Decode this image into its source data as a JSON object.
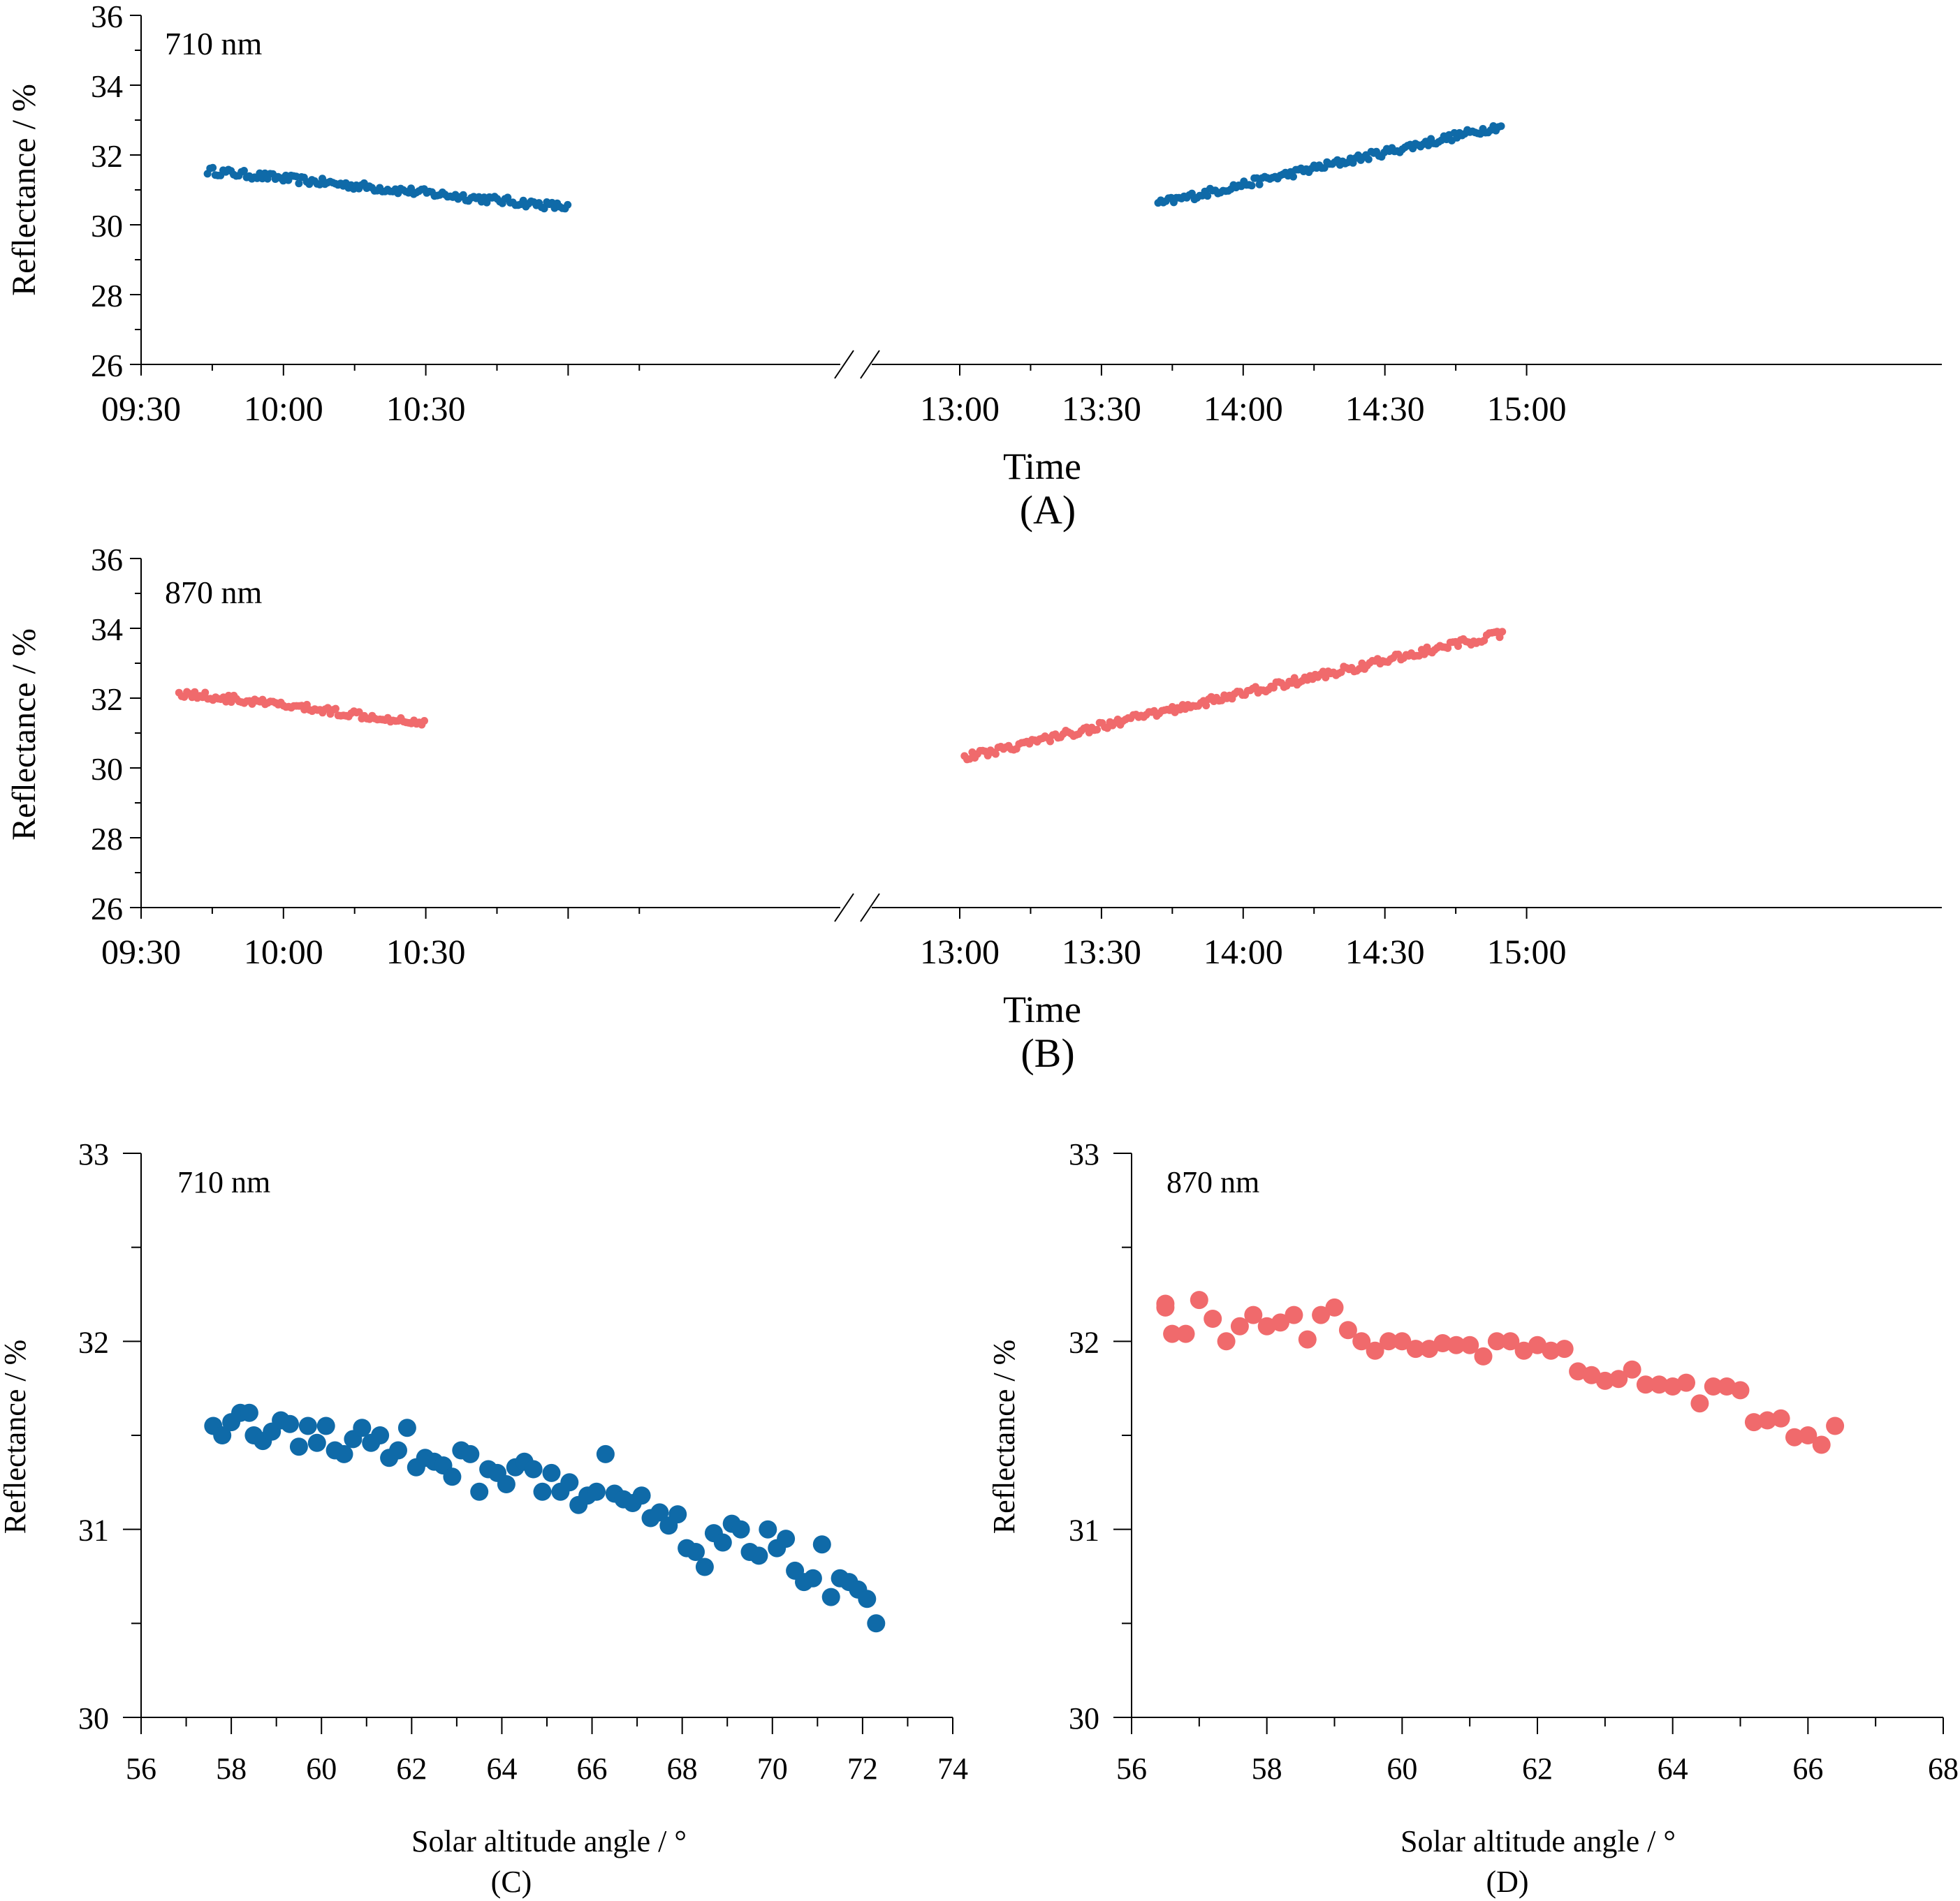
{
  "colors": {
    "blue": "#0f6aa8",
    "red": "#f06a6c",
    "axis": "#000000"
  },
  "chart_data": [
    {
      "id": "A",
      "type": "scatter",
      "panel_label": "(A)",
      "annotation": "710 nm",
      "xlabel": "Time",
      "ylabel": "Reflectance / %",
      "ylim": [
        26,
        36
      ],
      "yticks": [
        "26",
        "28",
        "30",
        "32",
        "34",
        "36"
      ],
      "xticks_left": [
        "09:30",
        "10:00",
        "10:30"
      ],
      "xticks_right": [
        "13:00",
        "13:30",
        "14:00",
        "14:30",
        "15:00"
      ],
      "x_break": true,
      "x_units": "minutes since 00:00",
      "series": [
        {
          "name": "710 nm",
          "color": "#0f6aa8",
          "segments": [
            {
              "start": 584,
              "end": 660,
              "y0": 31.55,
              "y1": 30.5
            },
            {
              "start": 822,
              "end": 895,
              "y0": 30.6,
              "y1": 32.85
            }
          ]
        }
      ]
    },
    {
      "id": "B",
      "type": "scatter",
      "panel_label": "(B)",
      "annotation": "870 nm",
      "xlabel": "Time",
      "ylabel": "Reflectance / %",
      "ylim": [
        26,
        36
      ],
      "yticks": [
        "26",
        "28",
        "30",
        "32",
        "34",
        "36"
      ],
      "xticks_left": [
        "09:30",
        "10:00",
        "10:30"
      ],
      "xticks_right": [
        "13:00",
        "13:30",
        "14:00",
        "14:30",
        "15:00"
      ],
      "x_break": true,
      "x_units": "minutes since 00:00",
      "series": [
        {
          "name": "870 nm",
          "color": "#f06a6c",
          "segments": [
            {
              "start": 578,
              "end": 630,
              "y0": 32.15,
              "y1": 31.3
            },
            {
              "start": 781,
              "end": 895,
              "y0": 30.3,
              "y1": 33.85
            }
          ]
        }
      ]
    },
    {
      "id": "C",
      "type": "scatter",
      "panel_label": "(C)",
      "annotation": "710 nm",
      "xlabel": "Solar altitude angle / °",
      "ylabel": "Reflectance / %",
      "xlim": [
        56,
        74
      ],
      "ylim": [
        30,
        33
      ],
      "xticks": [
        "56",
        "58",
        "60",
        "62",
        "64",
        "66",
        "68",
        "70",
        "72",
        "74"
      ],
      "yticks": [
        "30",
        "31",
        "32",
        "33"
      ],
      "series": [
        {
          "name": "710 nm",
          "color": "#0f6aa8",
          "points": [
            [
              57.6,
              31.55
            ],
            [
              57.8,
              31.5
            ],
            [
              58.0,
              31.57
            ],
            [
              58.2,
              31.62
            ],
            [
              58.4,
              31.62
            ],
            [
              58.5,
              31.5
            ],
            [
              58.7,
              31.47
            ],
            [
              58.9,
              31.52
            ],
            [
              59.1,
              31.58
            ],
            [
              59.3,
              31.56
            ],
            [
              59.5,
              31.44
            ],
            [
              59.7,
              31.55
            ],
            [
              59.9,
              31.46
            ],
            [
              60.1,
              31.55
            ],
            [
              60.3,
              31.42
            ],
            [
              60.5,
              31.4
            ],
            [
              60.7,
              31.48
            ],
            [
              60.9,
              31.54
            ],
            [
              61.1,
              31.46
            ],
            [
              61.3,
              31.5
            ],
            [
              61.5,
              31.38
            ],
            [
              61.7,
              31.42
            ],
            [
              61.9,
              31.54
            ],
            [
              62.1,
              31.33
            ],
            [
              62.3,
              31.38
            ],
            [
              62.5,
              31.36
            ],
            [
              62.7,
              31.34
            ],
            [
              62.9,
              31.28
            ],
            [
              63.1,
              31.42
            ],
            [
              63.3,
              31.4
            ],
            [
              63.5,
              31.2
            ],
            [
              63.7,
              31.32
            ],
            [
              63.9,
              31.3
            ],
            [
              64.1,
              31.24
            ],
            [
              64.3,
              31.33
            ],
            [
              64.5,
              31.36
            ],
            [
              64.7,
              31.32
            ],
            [
              64.9,
              31.2
            ],
            [
              65.1,
              31.3
            ],
            [
              65.3,
              31.2
            ],
            [
              65.5,
              31.25
            ],
            [
              65.7,
              31.13
            ],
            [
              65.9,
              31.18
            ],
            [
              66.1,
              31.2
            ],
            [
              66.3,
              31.4
            ],
            [
              66.5,
              31.19
            ],
            [
              66.7,
              31.16
            ],
            [
              66.9,
              31.14
            ],
            [
              67.1,
              31.18
            ],
            [
              67.3,
              31.06
            ],
            [
              67.5,
              31.09
            ],
            [
              67.7,
              31.02
            ],
            [
              67.9,
              31.08
            ],
            [
              68.1,
              30.9
            ],
            [
              68.3,
              30.88
            ],
            [
              68.5,
              30.8
            ],
            [
              68.7,
              30.98
            ],
            [
              68.9,
              30.93
            ],
            [
              69.1,
              31.03
            ],
            [
              69.3,
              31.0
            ],
            [
              69.5,
              30.88
            ],
            [
              69.7,
              30.86
            ],
            [
              69.9,
              31.0
            ],
            [
              70.1,
              30.9
            ],
            [
              70.3,
              30.95
            ],
            [
              70.5,
              30.78
            ],
            [
              70.7,
              30.72
            ],
            [
              70.9,
              30.74
            ],
            [
              71.1,
              30.92
            ],
            [
              71.3,
              30.64
            ],
            [
              71.5,
              30.74
            ],
            [
              71.7,
              30.72
            ],
            [
              71.9,
              30.68
            ],
            [
              72.1,
              30.63
            ],
            [
              72.3,
              30.5
            ]
          ]
        }
      ]
    },
    {
      "id": "D",
      "type": "scatter",
      "panel_label": "(D)",
      "annotation": "870 nm",
      "xlabel": "Solar altitude angle / °",
      "ylabel": "Reflectance / %",
      "xlim": [
        56,
        68
      ],
      "ylim": [
        30,
        33
      ],
      "xticks": [
        "56",
        "58",
        "60",
        "62",
        "64",
        "66",
        "68"
      ],
      "yticks": [
        "30",
        "31",
        "32",
        "33"
      ],
      "series": [
        {
          "name": "870 nm",
          "color": "#f06a6c",
          "points": [
            [
              56.5,
              32.2
            ],
            [
              56.5,
              32.18
            ],
            [
              56.6,
              32.04
            ],
            [
              56.8,
              32.04
            ],
            [
              57.0,
              32.22
            ],
            [
              57.2,
              32.12
            ],
            [
              57.4,
              32.0
            ],
            [
              57.6,
              32.08
            ],
            [
              57.8,
              32.14
            ],
            [
              58.0,
              32.08
            ],
            [
              58.2,
              32.1
            ],
            [
              58.4,
              32.14
            ],
            [
              58.6,
              32.01
            ],
            [
              58.8,
              32.14
            ],
            [
              59.0,
              32.18
            ],
            [
              59.2,
              32.06
            ],
            [
              59.4,
              32.0
            ],
            [
              59.6,
              31.95
            ],
            [
              59.8,
              32.0
            ],
            [
              60.0,
              32.0
            ],
            [
              60.2,
              31.96
            ],
            [
              60.4,
              31.96
            ],
            [
              60.6,
              31.99
            ],
            [
              60.8,
              31.98
            ],
            [
              61.0,
              31.98
            ],
            [
              61.2,
              31.92
            ],
            [
              61.4,
              32.0
            ],
            [
              61.6,
              32.0
            ],
            [
              61.8,
              31.95
            ],
            [
              62.0,
              31.98
            ],
            [
              62.2,
              31.95
            ],
            [
              62.4,
              31.96
            ],
            [
              62.6,
              31.84
            ],
            [
              62.8,
              31.82
            ],
            [
              63.0,
              31.79
            ],
            [
              63.2,
              31.8
            ],
            [
              63.4,
              31.85
            ],
            [
              63.6,
              31.77
            ],
            [
              63.8,
              31.77
            ],
            [
              64.0,
              31.76
            ],
            [
              64.2,
              31.78
            ],
            [
              64.4,
              31.67
            ],
            [
              64.6,
              31.76
            ],
            [
              64.8,
              31.76
            ],
            [
              65.0,
              31.74
            ],
            [
              65.2,
              31.57
            ],
            [
              65.4,
              31.58
            ],
            [
              65.6,
              31.59
            ],
            [
              65.8,
              31.49
            ],
            [
              66.0,
              31.5
            ],
            [
              66.2,
              31.45
            ],
            [
              66.4,
              31.55
            ]
          ]
        }
      ]
    }
  ]
}
